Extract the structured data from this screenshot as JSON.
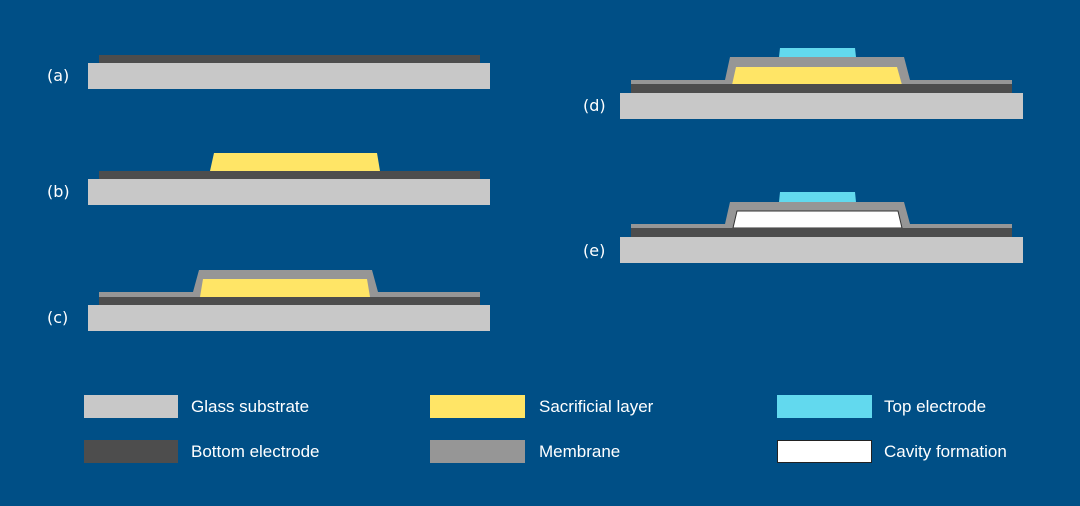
{
  "colors": {
    "background": "#004F86",
    "glass": "#C8C8C8",
    "bottom_electrode": "#4D4D4D",
    "sacrificial": "#FFE566",
    "membrane": "#969696",
    "top_electrode": "#62D9EE",
    "cavity": "#FFFFFF"
  },
  "steps": {
    "a": "(a)",
    "b": "(b)",
    "c": "(c)",
    "d": "(d)",
    "e": "(e)"
  },
  "legend": [
    {
      "label": "Glass substrate",
      "color": "#C8C8C8"
    },
    {
      "label": "Sacrificial layer",
      "color": "#FFE566"
    },
    {
      "label": "Top electrode",
      "color": "#62D9EE"
    },
    {
      "label": "Bottom electrode",
      "color": "#4D4D4D"
    },
    {
      "label": "Membrane",
      "color": "#969696"
    },
    {
      "label": "Cavity formation",
      "color": "#FFFFFF"
    }
  ]
}
